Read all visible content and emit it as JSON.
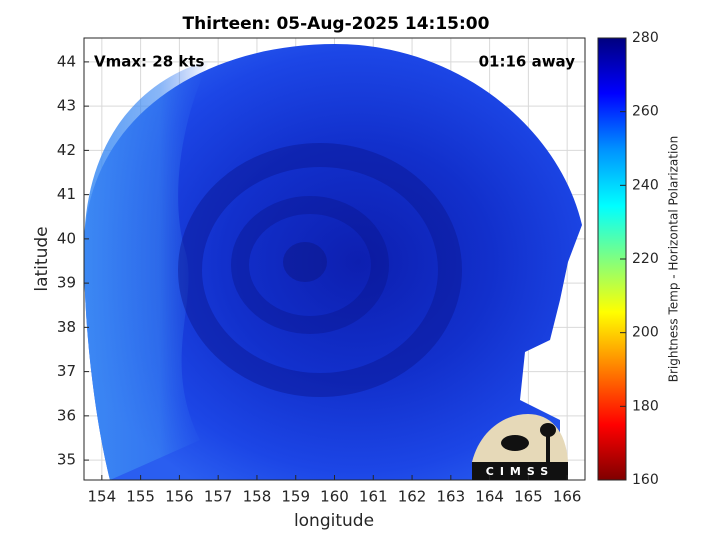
{
  "chart_data": {
    "type": "image",
    "title": "Thirteen: 05-Aug-2025 14:15:00",
    "annotations": [
      "Vmax: 28 kts",
      "01:16 away"
    ],
    "xlabel": "longitude",
    "ylabel": "latitude",
    "xlim": [
      153.54,
      166.46
    ],
    "xticks": [
      154,
      155,
      156,
      157,
      158,
      159,
      160,
      161,
      162,
      163,
      164,
      165,
      166
    ],
    "ylim": [
      34.55,
      44.54
    ],
    "yticks": [
      35,
      36,
      37,
      38,
      39,
      40,
      41,
      42,
      43,
      44
    ],
    "grid": true,
    "colorbar": {
      "label": "Brightness Temp - Horizontal Polarization",
      "lim": [
        160,
        280
      ],
      "ticks": [
        160,
        180,
        200,
        220,
        240,
        260,
        280
      ]
    },
    "logo": "CIMSS"
  }
}
